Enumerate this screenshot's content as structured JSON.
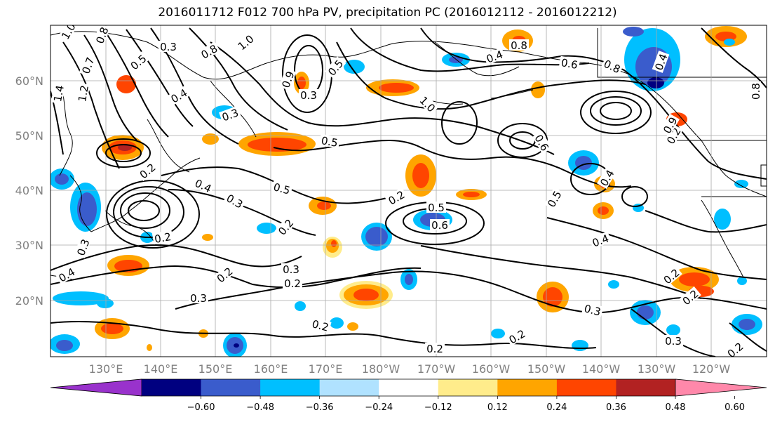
{
  "title": "2016011712 F012 700 hPa PV, precipitation PC (2016012112 - 2016012212)",
  "map": {
    "lat_ticks": [
      "60°N",
      "50°N",
      "40°N",
      "30°N",
      "20°N"
    ],
    "lon_ticks": [
      "130°E",
      "140°E",
      "150°E",
      "160°E",
      "170°E",
      "180°W",
      "170°W",
      "160°W",
      "150°W",
      "140°W",
      "130°W",
      "120°W"
    ],
    "contour_labels": [
      {
        "text": "1.0"
      },
      {
        "text": "0.8"
      },
      {
        "text": "0.7"
      },
      {
        "text": "0.5"
      },
      {
        "text": "0.3"
      },
      {
        "text": "0.8"
      },
      {
        "text": "1.0"
      },
      {
        "text": "1.4"
      },
      {
        "text": "1.2"
      },
      {
        "text": "0.4"
      },
      {
        "text": "0.9"
      },
      {
        "text": "0.3"
      },
      {
        "text": "0.5"
      },
      {
        "text": "1.0"
      },
      {
        "text": "0.4"
      },
      {
        "text": "0.8"
      },
      {
        "text": "0.6"
      },
      {
        "text": "0.8"
      },
      {
        "text": "0.4"
      },
      {
        "text": "0.2"
      },
      {
        "text": "0.5"
      },
      {
        "text": "0.6"
      },
      {
        "text": "0.8"
      },
      {
        "text": "0.9"
      },
      {
        "text": "0.3"
      },
      {
        "text": "0.2"
      },
      {
        "text": "0.4"
      },
      {
        "text": "0.3"
      },
      {
        "text": "0.5"
      },
      {
        "text": "0.2"
      },
      {
        "text": "0.2"
      },
      {
        "text": "0.5"
      },
      {
        "text": "0.6"
      },
      {
        "text": "0.5"
      },
      {
        "text": "0.4"
      },
      {
        "text": "0.4"
      },
      {
        "text": "0.3"
      },
      {
        "text": "0.2"
      },
      {
        "text": "0.3"
      },
      {
        "text": "0.2"
      },
      {
        "text": "0.3"
      },
      {
        "text": "0.2"
      },
      {
        "text": "0.2"
      },
      {
        "text": "0.2"
      },
      {
        "text": "0.2"
      },
      {
        "text": "0.2"
      },
      {
        "text": "0.3"
      },
      {
        "text": "0.2"
      },
      {
        "text": "0.4"
      },
      {
        "text": "0.3"
      },
      {
        "text": "0.2"
      }
    ]
  },
  "colorbar": {
    "colors": [
      "#9932cc",
      "#000080",
      "#3a5ccc",
      "#00bfff",
      "#b0e2ff",
      "#ffffff",
      "#ffec8b",
      "#ffa500",
      "#ff4500",
      "#b22222",
      "#ff88aa"
    ],
    "tick_labels": [
      "−0.60",
      "−0.48",
      "−0.36",
      "−0.24",
      "−0.12",
      "0.12",
      "0.24",
      "0.36",
      "0.48",
      "0.60"
    ]
  }
}
